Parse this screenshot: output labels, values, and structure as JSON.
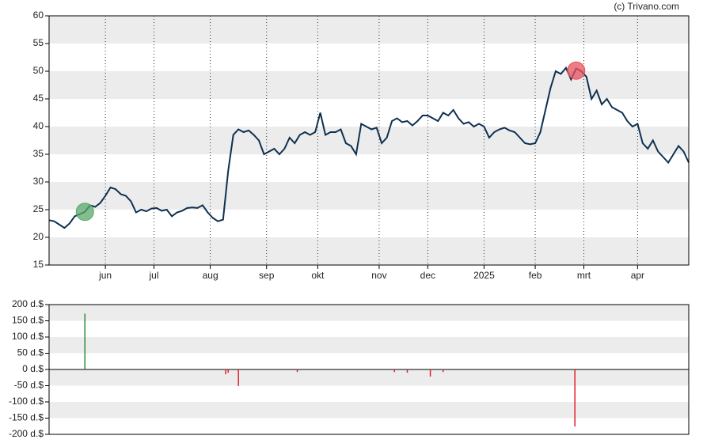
{
  "chart_data": [
    {
      "type": "line",
      "credit": "(c) Trivano.com",
      "x": [
        0,
        2,
        4,
        6,
        8,
        10,
        12,
        14,
        16,
        18,
        20,
        22,
        24,
        26,
        28,
        30,
        32,
        34,
        36,
        38,
        40,
        42,
        44,
        46,
        48,
        50,
        52,
        54,
        56,
        58,
        60,
        62,
        64,
        66,
        68,
        70,
        72,
        74,
        76,
        78,
        80,
        82,
        84,
        86,
        88,
        90,
        92,
        94,
        96,
        98,
        100,
        102,
        104,
        106,
        108,
        110,
        112,
        114,
        116,
        118,
        120,
        122,
        124,
        126,
        128,
        130,
        132,
        134,
        136,
        138,
        140,
        142,
        144,
        146,
        148,
        150,
        152,
        154,
        156,
        158,
        160,
        162,
        164,
        166,
        168,
        170,
        172,
        174,
        176,
        178,
        180,
        182,
        184,
        186,
        188,
        190,
        192,
        194,
        196,
        198,
        200,
        202,
        204,
        206,
        208,
        210,
        212,
        214,
        216,
        218,
        220,
        222,
        224,
        226,
        228,
        230,
        232,
        234,
        236,
        238,
        240,
        242,
        244,
        246,
        248,
        250
      ],
      "values": [
        23.1,
        22.9,
        22.3,
        21.7,
        22.5,
        23.8,
        24.2,
        24.6,
        25.8,
        25.5,
        26.2,
        27.5,
        29,
        28.7,
        27.8,
        27.5,
        26.5,
        24.5,
        25,
        24.7,
        25.2,
        25.3,
        24.8,
        25,
        23.8,
        24.5,
        24.8,
        25.3,
        25.4,
        25.3,
        25.8,
        24.5,
        23.5,
        22.9,
        23.2,
        32,
        38.5,
        39.5,
        39,
        39.3,
        38.5,
        37.5,
        35,
        35.5,
        36,
        35,
        36,
        38,
        37,
        38.5,
        39,
        38.5,
        39,
        42.5,
        38.5,
        39,
        39,
        39.5,
        37,
        36.5,
        35,
        40.5,
        40,
        39.5,
        39.8,
        37,
        38,
        41,
        41.5,
        40.8,
        41,
        40.2,
        41,
        42,
        42,
        41.5,
        41,
        42.5,
        42,
        43,
        41.5,
        40.5,
        40.8,
        40,
        40.5,
        40,
        38,
        39,
        39.5,
        39.8,
        39.3,
        39,
        38,
        37,
        36.8,
        37,
        39,
        43,
        47,
        50,
        49.5,
        50.6,
        48.5,
        50.5,
        50,
        49,
        45,
        46.5,
        44,
        45,
        43.5,
        43,
        42.5,
        41,
        40,
        40.5,
        37,
        36,
        37.5,
        35.5,
        34.5,
        33.5,
        35,
        36.5,
        35.5,
        33.5
      ],
      "color": "#0d3050",
      "markers": [
        {
          "x": 14,
          "y": 24.6,
          "color": "#5aa86a"
        },
        {
          "x": 206,
          "y": 50.1,
          "color": "#e8505e"
        }
      ],
      "xlim": [
        0,
        250
      ],
      "xticks": [
        {
          "value": 22,
          "label": "jun"
        },
        {
          "value": 41,
          "label": "jul"
        },
        {
          "value": 63,
          "label": "aug"
        },
        {
          "value": 85,
          "label": "sep"
        },
        {
          "value": 105,
          "label": "okt"
        },
        {
          "value": 129,
          "label": "nov"
        },
        {
          "value": 148,
          "label": "dec"
        },
        {
          "value": 170,
          "label": "2025"
        },
        {
          "value": 190,
          "label": "feb"
        },
        {
          "value": 209,
          "label": "mrt"
        },
        {
          "value": 230,
          "label": "apr"
        }
      ],
      "ylim": [
        15,
        60
      ],
      "yticks": [
        15,
        20,
        25,
        30,
        35,
        40,
        45,
        50,
        55,
        60
      ],
      "grid": "bands"
    },
    {
      "type": "bar",
      "x": [
        14,
        69,
        70,
        74,
        97,
        135,
        140,
        149,
        154,
        205.5
      ],
      "values": [
        172,
        -15,
        -10,
        -51,
        -8,
        -8,
        -10,
        -22,
        -8,
        -176
      ],
      "colors": [
        "#2e8b3e",
        "#e0202e",
        "#e0202e",
        "#e0202e",
        "#e0202e",
        "#e0202e",
        "#e0202e",
        "#e0202e",
        "#e0202e",
        "#e0202e"
      ],
      "xlim": [
        0,
        250
      ],
      "ylim": [
        -200,
        200
      ],
      "yticks": [
        {
          "value": -200,
          "label": "-200 d.$"
        },
        {
          "value": -150,
          "label": "-150 d.$"
        },
        {
          "value": -100,
          "label": "-100 d.$"
        },
        {
          "value": -50,
          "label": "-50 d.$"
        },
        {
          "value": 0,
          "label": "0 d.$"
        },
        {
          "value": 50,
          "label": "50 d.$"
        },
        {
          "value": 100,
          "label": "100 d.$"
        },
        {
          "value": 150,
          "label": "150 d.$"
        },
        {
          "value": 200,
          "label": "200 d.$"
        }
      ],
      "grid": "bands"
    }
  ]
}
